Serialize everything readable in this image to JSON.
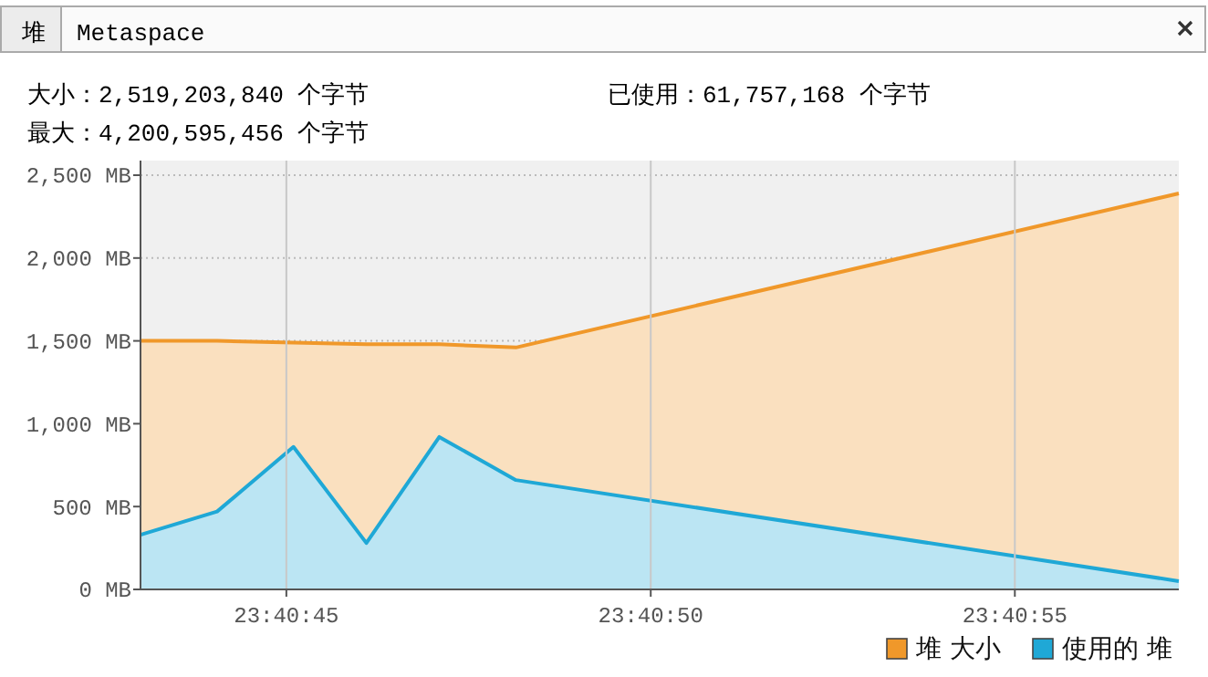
{
  "chart_data": {
    "type": "area",
    "annotations": [
      "堆",
      "Metaspace",
      "大小：2,519,203,840 个字节",
      "已使用：61,757,168 个字节",
      "最大：4,200,595,456 个字节"
    ],
    "x": [
      23.678611,
      23.678903,
      23.679194,
      23.679472,
      23.67975,
      23.680042,
      23.682569
    ],
    "series": [
      {
        "name": "堆 大小",
        "color": "#f0982a",
        "values": [
          1500,
          1500,
          1490,
          1480,
          1480,
          1460,
          2390
        ]
      },
      {
        "name": "使用的 堆",
        "color": "#1fa8d6",
        "values": [
          330,
          470,
          860,
          280,
          920,
          660,
          50
        ]
      }
    ],
    "xlim": [
      23.678611,
      23.682569
    ],
    "xticks": [
      {
        "value": 23.679167,
        "label": "23:40:45"
      },
      {
        "value": 23.680556,
        "label": "23:40:50"
      },
      {
        "value": 23.681944,
        "label": "23:40:55"
      }
    ],
    "ylim": [
      0,
      2500
    ],
    "yticks": [
      {
        "value": 0,
        "label": "0 MB"
      },
      {
        "value": 500,
        "label": "500 MB"
      },
      {
        "value": 1000,
        "label": "1,000 MB"
      },
      {
        "value": 1500,
        "label": "1,500 MB"
      },
      {
        "value": 2000,
        "label": "2,000 MB"
      },
      {
        "value": 2500,
        "label": "2,500 MB"
      }
    ],
    "grid": true,
    "legend": "bottom right",
    "marker": "none",
    "line_style": "solid"
  }
}
